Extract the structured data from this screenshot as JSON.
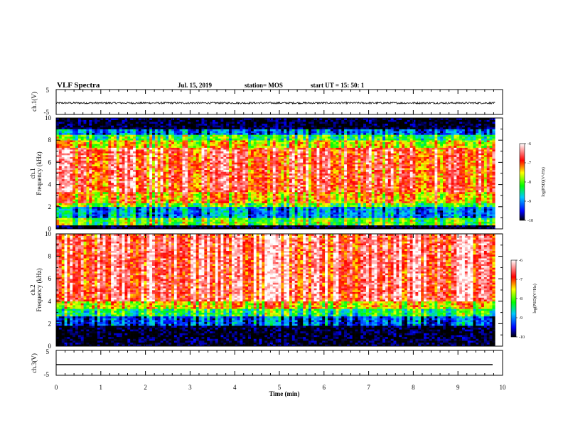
{
  "header": {
    "title": "VLF Spectra",
    "date": "Jul. 15, 2019",
    "station": "station= MOS",
    "start": "start UT =  15: 50: 1"
  },
  "chart_data": [
    {
      "type": "line",
      "name": "ch1-waveform",
      "ylabel": "ch.1(V)",
      "ylim": [
        -5,
        5
      ],
      "yticks": [
        "5",
        "-5"
      ],
      "x_extent_min": [
        0,
        9.83
      ],
      "level_v": -0.4
    },
    {
      "type": "heatmap",
      "name": "ch1-spectrogram",
      "ylabel": "ch.1\nFrequency (kHz)",
      "ylim": [
        0,
        10
      ],
      "yticks": [
        "0",
        "2",
        "4",
        "6",
        "8",
        "10"
      ],
      "colorbar": {
        "label": "log(PSD)(V²/Hz)",
        "range": [
          -10,
          -6
        ],
        "ticks": [
          "-6",
          "-7",
          "-8",
          "-9",
          "-10"
        ]
      },
      "bands_khz": [
        {
          "from": 0,
          "to": 0.3,
          "logpsd": -10
        },
        {
          "from": 0.3,
          "to": 1.0,
          "logpsd": -8
        },
        {
          "from": 1.0,
          "to": 1.9,
          "logpsd": -9
        },
        {
          "from": 1.9,
          "to": 2.3,
          "logpsd": -8
        },
        {
          "from": 2.3,
          "to": 3.3,
          "logpsd": -7.3
        },
        {
          "from": 3.3,
          "to": 7.2,
          "logpsd": -6.8
        },
        {
          "from": 7.2,
          "to": 8.0,
          "logpsd": -7.5
        },
        {
          "from": 8.0,
          "to": 8.5,
          "logpsd": -8.2
        },
        {
          "from": 8.5,
          "to": 9.0,
          "logpsd": -9.2
        },
        {
          "from": 9.0,
          "to": 10,
          "logpsd": -10
        }
      ]
    },
    {
      "type": "heatmap",
      "name": "ch2-spectrogram",
      "ylabel": "ch.2\nFrequency (kHz)",
      "ylim": [
        0,
        10
      ],
      "yticks": [
        "0",
        "2",
        "4",
        "6",
        "8",
        "10"
      ],
      "colorbar": {
        "label": "log(PSD)(V²/Hz)",
        "range": [
          -10,
          -6
        ],
        "ticks": [
          "-6",
          "-7",
          "-8",
          "-9",
          "-10"
        ]
      },
      "bands_khz": [
        {
          "from": 0,
          "to": 1.8,
          "logpsd": -10
        },
        {
          "from": 1.8,
          "to": 2.6,
          "logpsd": -9.3
        },
        {
          "from": 2.6,
          "to": 3.3,
          "logpsd": -8.3
        },
        {
          "from": 3.3,
          "to": 4.0,
          "logpsd": -7.5
        },
        {
          "from": 4.0,
          "to": 10,
          "logpsd": -6.6
        }
      ]
    },
    {
      "type": "line",
      "name": "ch3-waveform",
      "ylabel": "ch.3(V)",
      "ylim": [
        -5,
        5
      ],
      "yticks": [
        "5",
        "-5"
      ],
      "x_extent_min": [
        0,
        9.83
      ],
      "level_v": -2
    }
  ],
  "xaxis": {
    "label": "Time (min)",
    "range": [
      0,
      10
    ],
    "ticks": [
      "0",
      "1",
      "2",
      "3",
      "4",
      "5",
      "6",
      "7",
      "8",
      "9",
      "10"
    ]
  }
}
